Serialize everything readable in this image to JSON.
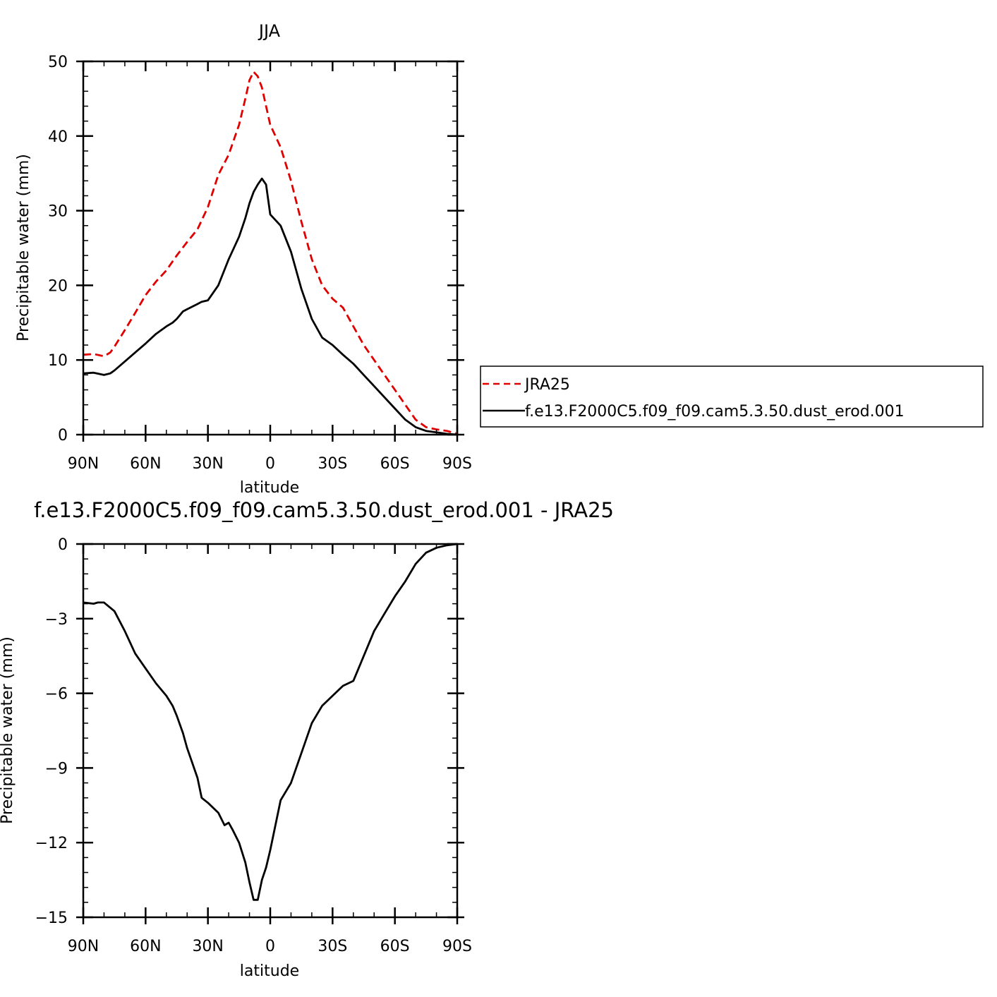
{
  "chart_data": [
    {
      "type": "line",
      "title": "JJA",
      "xlabel": "latitude",
      "ylabel": "Precipitable water (mm)",
      "xlim": [
        90,
        -90
      ],
      "ylim": [
        0,
        50
      ],
      "x_ticks": [
        90,
        60,
        30,
        0,
        -30,
        -60,
        -90
      ],
      "x_tick_labels": [
        "90N",
        "60N",
        "30N",
        "0",
        "30S",
        "60S",
        "90S"
      ],
      "y_ticks": [
        0,
        10,
        20,
        30,
        40,
        50
      ],
      "y_tick_labels": [
        "0",
        "10",
        "20",
        "30",
        "40",
        "50"
      ],
      "legend_position": "right",
      "series": [
        {
          "name": "JRA25",
          "color": "#e00000",
          "style": "dashed",
          "x": [
            90,
            85,
            80,
            77,
            75,
            70,
            65,
            60,
            55,
            50,
            45,
            40,
            35,
            30,
            25,
            20,
            15,
            12,
            10,
            8,
            6,
            4,
            2,
            0,
            -5,
            -10,
            -15,
            -20,
            -25,
            -30,
            -35,
            -40,
            -45,
            -50,
            -55,
            -60,
            -65,
            -70,
            -75,
            -80,
            -85,
            -90
          ],
          "values": [
            10.7,
            10.8,
            10.5,
            11.0,
            11.8,
            14.0,
            16.3,
            18.7,
            20.5,
            22.0,
            24.0,
            25.8,
            27.5,
            30.5,
            34.8,
            37.5,
            41.5,
            45.0,
            47.5,
            48.6,
            48.0,
            46.5,
            44.0,
            41.5,
            38.5,
            34.0,
            28.5,
            23.5,
            20.0,
            18.2,
            17.0,
            14.5,
            12.0,
            10.0,
            8.0,
            6.0,
            4.0,
            2.0,
            1.0,
            0.7,
            0.5,
            0.1
          ]
        },
        {
          "name": "f.e13.F2000C5.f09_f09.cam5.3.50.dust_erod.001",
          "color": "#000000",
          "style": "solid",
          "x": [
            90,
            85,
            80,
            77,
            75,
            70,
            65,
            60,
            55,
            50,
            47,
            45,
            42,
            40,
            35,
            33,
            30,
            25,
            20,
            15,
            12,
            10,
            8,
            6,
            4,
            2,
            0,
            -5,
            -10,
            -15,
            -20,
            -25,
            -30,
            -35,
            -40,
            -45,
            -50,
            -55,
            -60,
            -65,
            -70,
            -75,
            -80,
            -85,
            -90
          ],
          "values": [
            8.2,
            8.3,
            8.0,
            8.2,
            8.6,
            9.8,
            11.0,
            12.2,
            13.5,
            14.5,
            15.0,
            15.5,
            16.5,
            16.8,
            17.5,
            17.8,
            18.0,
            20.0,
            23.5,
            26.5,
            29.0,
            31.0,
            32.5,
            33.5,
            34.3,
            33.5,
            29.5,
            28.0,
            24.5,
            19.5,
            15.5,
            13.0,
            12.0,
            10.7,
            9.5,
            8.0,
            6.5,
            5.0,
            3.5,
            2.0,
            1.0,
            0.5,
            0.3,
            0.1,
            0.0
          ]
        }
      ]
    },
    {
      "type": "line",
      "title": "f.e13.F2000C5.f09_f09.cam5.3.50.dust_erod.001 - JRA25",
      "xlabel": "latitude",
      "ylabel": "Precipitable water (mm)",
      "xlim": [
        90,
        -90
      ],
      "ylim": [
        -15,
        0
      ],
      "x_ticks": [
        90,
        60,
        30,
        0,
        -30,
        -60,
        -90
      ],
      "x_tick_labels": [
        "90N",
        "60N",
        "30N",
        "0",
        "30S",
        "60S",
        "90S"
      ],
      "y_ticks": [
        0,
        -3,
        -6,
        -9,
        -12,
        -15
      ],
      "y_tick_labels": [
        "0",
        "−3",
        "−6",
        "−9",
        "−12",
        "−15"
      ],
      "series": [
        {
          "color": "#000000",
          "style": "solid",
          "x": [
            90,
            85,
            83,
            80,
            75,
            70,
            65,
            60,
            55,
            50,
            47,
            45,
            42,
            40,
            35,
            33,
            30,
            25,
            22,
            20,
            18,
            15,
            12,
            10,
            8,
            6,
            4,
            2,
            0,
            -5,
            -10,
            -15,
            -20,
            -25,
            -30,
            -35,
            -40,
            -45,
            -50,
            -55,
            -60,
            -65,
            -70,
            -75,
            -80,
            -85,
            -90
          ],
          "values": [
            -2.35,
            -2.4,
            -2.35,
            -2.35,
            -2.7,
            -3.5,
            -4.4,
            -5.0,
            -5.6,
            -6.1,
            -6.5,
            -6.9,
            -7.6,
            -8.2,
            -9.4,
            -10.2,
            -10.4,
            -10.8,
            -11.3,
            -11.2,
            -11.5,
            -12.0,
            -12.8,
            -13.6,
            -14.3,
            -14.3,
            -13.5,
            -13.0,
            -12.3,
            -10.3,
            -9.6,
            -8.4,
            -7.2,
            -6.5,
            -6.1,
            -5.7,
            -5.5,
            -4.5,
            -3.5,
            -2.8,
            -2.1,
            -1.5,
            -0.8,
            -0.35,
            -0.15,
            -0.05,
            0.0
          ]
        }
      ]
    }
  ]
}
